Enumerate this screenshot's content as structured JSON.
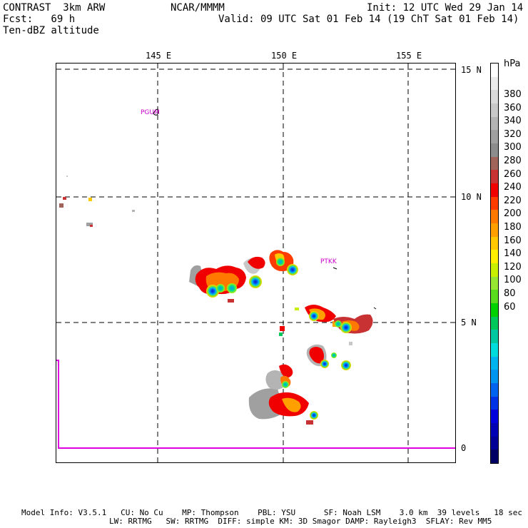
{
  "header": {
    "left_line1": "CONTRAST  3km ARW",
    "left_line2": "Fcst:   69 h",
    "left_line3": "Ten-dBZ altitude",
    "center": "NCAR/MMMM",
    "init": "Init: 12 UTC Wed 29 Jan 14",
    "valid": "Valid: 09 UTC Sat 01 Feb 14 (19 ChT Sat 01 Feb 14)"
  },
  "map": {
    "lon_labels": [
      "145 E",
      "150 E",
      "155 E"
    ],
    "lat_labels": [
      "15 N",
      "10 N",
      "5 N",
      "0"
    ],
    "stations": [
      {
        "id": "station-pgum",
        "name": "PGUM"
      },
      {
        "id": "station-ptkk",
        "name": "PTKK"
      }
    ]
  },
  "colorbar": {
    "unit": "hPa",
    "labels": [
      "380",
      "360",
      "340",
      "320",
      "300",
      "280",
      "260",
      "240",
      "220",
      "200",
      "180",
      "160",
      "140",
      "120",
      "100",
      "80",
      "60"
    ],
    "colors_top_to_bottom": [
      "#ffffff",
      "#ececec",
      "#dadada",
      "#c8c8c8",
      "#b4b4b4",
      "#a0a0a0",
      "#8c8c8c",
      "#a0645a",
      "#c83232",
      "#f00000",
      "#ff3c00",
      "#ff7800",
      "#ffa000",
      "#ffc800",
      "#fff000",
      "#c8f000",
      "#96e632",
      "#5adc1e",
      "#00d200",
      "#00c85a",
      "#00c8a0",
      "#00dcdc",
      "#00b4f0",
      "#0096f0",
      "#0064f0",
      "#0032e6",
      "#0000dc",
      "#0000b4",
      "#000096",
      "#000064"
    ]
  },
  "footer": {
    "line1": "Model Info: V3.5.1   CU: No Cu    MP: Thompson    PBL: YSU      SF: Noah LSM    3.0 km  39 levels   18 sec",
    "line2": "LW: RRTMG   SW: RRTMG  DIFF: simple KM: 3D Smagor DAMP: Rayleigh3  SFLAY: Rev MM5"
  }
}
